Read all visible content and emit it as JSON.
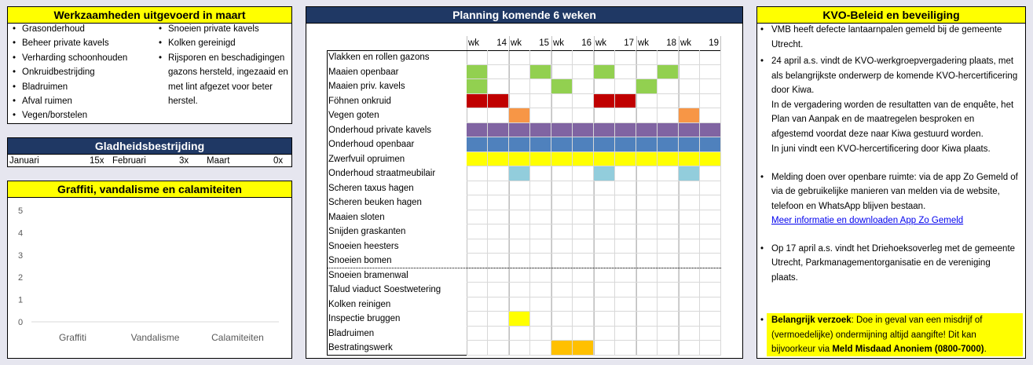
{
  "werkzaamheden": {
    "title": "Werkzaamheden uitgevoerd in maart",
    "col1": [
      "Grasonderhoud",
      "Beheer private kavels",
      "Verharding schoonhouden",
      "Onkruidbestrijding",
      "Bladruimen",
      "Afval ruimen",
      "Vegen/borstelen"
    ],
    "col2": [
      "Snoeien private kavels",
      "Kolken gereinigd",
      "Rijsporen en beschadigingen gazons hersteld, ingezaaid en met lint afgezet voor beter herstel."
    ]
  },
  "gladheid": {
    "title": "Gladheidsbestrijding",
    "months": [
      {
        "label": "Januari",
        "value": "15x"
      },
      {
        "label": "Februari",
        "value": "3x"
      },
      {
        "label": "Maart",
        "value": "0x"
      }
    ]
  },
  "graffiti": {
    "title": "Graffiti, vandalisme en calamiteiten",
    "chart_data": {
      "type": "bar",
      "categories": [
        "Graffiti",
        "Vandalisme",
        "Calamiteiten"
      ],
      "values": [
        0,
        0,
        0
      ],
      "ylim": [
        0,
        5
      ],
      "yticks": [
        0,
        1,
        2,
        3,
        4,
        5
      ]
    }
  },
  "planning": {
    "title": "Planning komende 6 weken",
    "week_prefix": "wk",
    "weeks": [
      "14",
      "15",
      "16",
      "17",
      "18",
      "19"
    ],
    "colors": {
      "green": "#92d050",
      "red": "#c00000",
      "orange": "#f79646",
      "purple": "#8064a2",
      "blue": "#4f81bd",
      "yellow": "#ffff00",
      "lightblue": "#92cddc",
      "gold": "#ffc000"
    },
    "rows": [
      {
        "label": "Vlakken en rollen gazons",
        "cells": [
          "",
          "",
          "",
          "",
          "",
          "",
          "",
          "",
          "",
          "",
          "",
          ""
        ]
      },
      {
        "label": "Maaien openbaar",
        "cells": [
          "green",
          "",
          "",
          "green",
          "",
          "",
          "green",
          "",
          "",
          "green",
          "",
          ""
        ]
      },
      {
        "label": "Maaien priv. kavels",
        "cells": [
          "green",
          "",
          "",
          "",
          "green",
          "",
          "",
          "",
          "green",
          "",
          "",
          ""
        ]
      },
      {
        "label": "Föhnen onkruid",
        "cells": [
          "red",
          "red",
          "",
          "",
          "",
          "",
          "red",
          "red",
          "",
          "",
          "",
          ""
        ]
      },
      {
        "label": "Vegen goten",
        "cells": [
          "",
          "",
          "orange",
          "",
          "",
          "",
          "",
          "",
          "",
          "",
          "orange",
          ""
        ]
      },
      {
        "label": "Onderhoud private kavels",
        "cells": [
          "purple",
          "purple",
          "purple",
          "purple",
          "purple",
          "purple",
          "purple",
          "purple",
          "purple",
          "purple",
          "purple",
          "purple"
        ]
      },
      {
        "label": "Onderhoud openbaar",
        "cells": [
          "blue",
          "blue",
          "blue",
          "blue",
          "blue",
          "blue",
          "blue",
          "blue",
          "blue",
          "blue",
          "blue",
          "blue"
        ]
      },
      {
        "label": "Zwerfvuil opruimen",
        "cells": [
          "yellow",
          "yellow",
          "yellow",
          "yellow",
          "yellow",
          "yellow",
          "yellow",
          "yellow",
          "yellow",
          "yellow",
          "yellow",
          "yellow"
        ]
      },
      {
        "label": "Onderhoud straatmeubilair",
        "cells": [
          "",
          "",
          "lightblue",
          "",
          "",
          "",
          "lightblue",
          "",
          "",
          "",
          "lightblue",
          ""
        ]
      },
      {
        "label": "Scheren taxus hagen",
        "cells": [
          "",
          "",
          "",
          "",
          "",
          "",
          "",
          "",
          "",
          "",
          "",
          ""
        ]
      },
      {
        "label": "Scheren beuken hagen",
        "cells": [
          "",
          "",
          "",
          "",
          "",
          "",
          "",
          "",
          "",
          "",
          "",
          ""
        ]
      },
      {
        "label": "Maaien sloten",
        "cells": [
          "",
          "",
          "",
          "",
          "",
          "",
          "",
          "",
          "",
          "",
          "",
          ""
        ]
      },
      {
        "label": "Snijden graskanten",
        "cells": [
          "",
          "",
          "",
          "",
          "",
          "",
          "",
          "",
          "",
          "",
          "",
          ""
        ]
      },
      {
        "label": "Snoeien heesters",
        "cells": [
          "",
          "",
          "",
          "",
          "",
          "",
          "",
          "",
          "",
          "",
          "",
          ""
        ]
      },
      {
        "label": "Snoeien bomen",
        "cells": [
          "",
          "",
          "",
          "",
          "",
          "",
          "",
          "",
          "",
          "",
          "",
          ""
        ]
      },
      {
        "label": "Snoeien bramenwal",
        "cells": [
          "",
          "",
          "",
          "",
          "",
          "",
          "",
          "",
          "",
          "",
          "",
          ""
        ]
      },
      {
        "label": "Talud viaduct Soestwetering",
        "cells": [
          "",
          "",
          "",
          "",
          "",
          "",
          "",
          "",
          "",
          "",
          "",
          ""
        ]
      },
      {
        "label": "Kolken reinigen",
        "cells": [
          "",
          "",
          "",
          "",
          "",
          "",
          "",
          "",
          "",
          "",
          "",
          ""
        ]
      },
      {
        "label": "Inspectie bruggen",
        "cells": [
          "",
          "",
          "yellow",
          "",
          "",
          "",
          "",
          "",
          "",
          "",
          "",
          ""
        ]
      },
      {
        "label": "Bladruimen",
        "cells": [
          "",
          "",
          "",
          "",
          "",
          "",
          "",
          "",
          "",
          "",
          "",
          ""
        ]
      },
      {
        "label": "Bestratingswerk",
        "cells": [
          "",
          "",
          "",
          "",
          "gold",
          "gold",
          "",
          "",
          "",
          "",
          "",
          ""
        ]
      }
    ]
  },
  "kvo": {
    "title": "KVO-Beleid en beveiliging",
    "item1": "VMB heeft defecte lantaarnpalen gemeld bij de gemeente Utrecht.",
    "item2": "24 april a.s. vindt de KVO-werkgroepvergadering plaats, met als belangrijkste onderwerp de komende KVO-hercertificering door Kiwa.",
    "item2b": "In de vergadering worden de resultatten van de enquête, het Plan van Aanpak en de maatregelen besproken en afgestemd voordat deze naar Kiwa gestuurd worden.",
    "item2c": "In juni vindt een KVO-hercertificering door Kiwa plaats.",
    "item3": "Melding doen over openbare ruimte: via de app Zo Gemeld of via de gebruikelijke manieren van melden via de website, telefoon en WhatsApp blijven bestaan.",
    "item3_link": "Meer informatie en downloaden App Zo Gemeld",
    "item4": "Op 17 april a.s. vindt het Driehoeksoverleg met de gemeente Utrecht, Parkmanagementorganisatie en de vereniging plaats.",
    "request_bold": "Belangrijk verzoek",
    "request_text": ": Doe in geval van een misdrijf of (vermoedelijke) ondermijning altijd aangifte! Dit kan bijvoorkeur via ",
    "request_bold2": "Meld Misdaad Anoniem (0800-7000)",
    "request_end": "."
  }
}
